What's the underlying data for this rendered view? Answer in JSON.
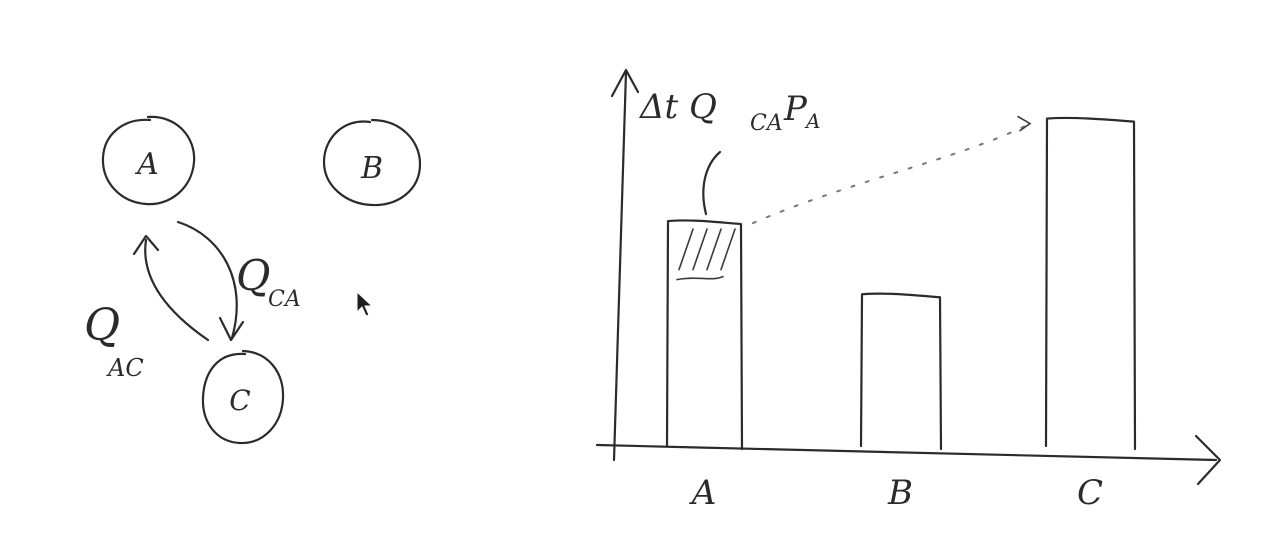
{
  "nodes": [
    {
      "id": "A",
      "label": "A"
    },
    {
      "id": "B",
      "label": "B"
    },
    {
      "id": "C",
      "label": "C"
    }
  ],
  "edges": [
    {
      "from": "C",
      "to": "A",
      "label": "Q",
      "sub": "CA"
    },
    {
      "from": "A",
      "to": "C",
      "label": "Q",
      "sub": "AC"
    }
  ],
  "bar_chart": {
    "annotation": {
      "prefix": "Δt Q",
      "sub": "CA",
      "tail": "P",
      "tail_sub": "A"
    },
    "categories": [
      "A",
      "B",
      "C"
    ],
    "values": [
      0.62,
      0.42,
      0.9
    ],
    "hatched_fraction_of_A": 0.16
  },
  "colors": {
    "ink": "#2b2b2b",
    "background": "#ffffff",
    "dotted": "#777777"
  }
}
